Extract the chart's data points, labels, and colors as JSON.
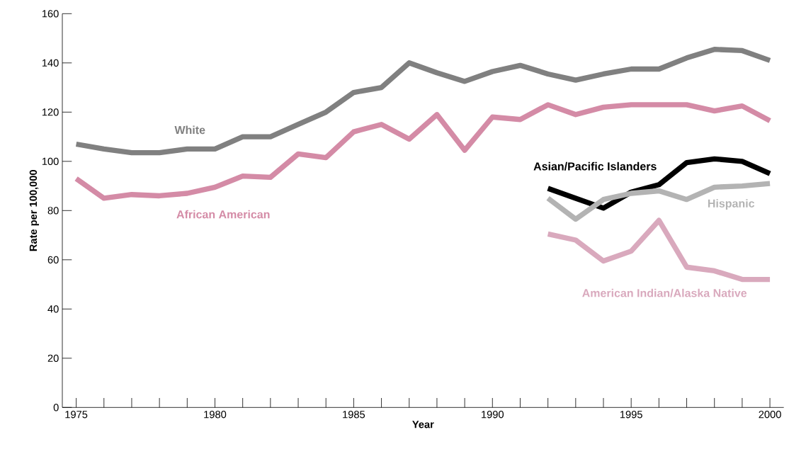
{
  "chart_data": {
    "type": "line",
    "xlabel": "Year",
    "ylabel": "Rate per 100,000",
    "xlim": [
      1974.5,
      2000.5
    ],
    "xticks": [
      1975,
      {
        "value": 1976,
        "label": null
      },
      {
        "value": 1977,
        "label": null
      },
      {
        "value": 1978,
        "label": null
      },
      {
        "value": 1979,
        "label": null
      },
      1980,
      {
        "value": 1981,
        "label": null
      },
      {
        "value": 1982,
        "label": null
      },
      {
        "value": 1983,
        "label": null
      },
      {
        "value": 1984,
        "label": null
      },
      1985,
      {
        "value": 1986,
        "label": null
      },
      {
        "value": 1987,
        "label": null
      },
      {
        "value": 1988,
        "label": null
      },
      {
        "value": 1989,
        "label": null
      },
      1990,
      {
        "value": 1991,
        "label": null
      },
      {
        "value": 1992,
        "label": null
      },
      {
        "value": 1993,
        "label": null
      },
      {
        "value": 1994,
        "label": null
      },
      1995,
      {
        "value": 1996,
        "label": null
      },
      {
        "value": 1997,
        "label": null
      },
      {
        "value": 1998,
        "label": null
      },
      {
        "value": 1999,
        "label": null
      },
      2000
    ],
    "ylim": [
      0,
      160
    ],
    "yticks": [
      0,
      20,
      40,
      60,
      80,
      100,
      120,
      140,
      160
    ],
    "grid": false,
    "legend": false,
    "series": [
      {
        "name": "White",
        "color": "#808080",
        "x": [
          1975,
          1976,
          1977,
          1978,
          1979,
          1980,
          1981,
          1982,
          1983,
          1984,
          1985,
          1986,
          1987,
          1988,
          1989,
          1990,
          1991,
          1992,
          1993,
          1994,
          1995,
          1996,
          1997,
          1998,
          1999,
          2000
        ],
        "values": [
          107,
          105,
          103.5,
          103.5,
          105,
          105,
          110,
          110,
          115,
          120,
          128,
          130,
          140,
          136,
          132.5,
          136.5,
          139,
          135.5,
          133,
          135.5,
          137.5,
          137.5,
          142,
          145.5,
          145,
          141
        ]
      },
      {
        "name": "African American",
        "color": "#d48ba6",
        "x": [
          1975,
          1976,
          1977,
          1978,
          1979,
          1980,
          1981,
          1982,
          1983,
          1984,
          1985,
          1986,
          1987,
          1988,
          1989,
          1990,
          1991,
          1992,
          1993,
          1994,
          1995,
          1996,
          1997,
          1998,
          1999,
          2000
        ],
        "values": [
          93,
          85,
          86.5,
          86,
          87,
          89.5,
          94,
          93.5,
          103,
          101.5,
          112,
          115,
          109,
          119,
          104.5,
          118,
          117,
          123,
          119,
          122,
          123,
          123,
          123,
          120.5,
          122.5,
          116.5
        ]
      },
      {
        "name": "Asian/Pacific Islanders",
        "color": "#000000",
        "x": [
          1992,
          1993,
          1994,
          1995,
          1996,
          1997,
          1998,
          1999,
          2000
        ],
        "values": [
          89,
          85,
          81,
          87.5,
          90.5,
          99.5,
          101,
          100,
          95
        ]
      },
      {
        "name": "Hispanic",
        "color": "#b3b3b3",
        "x": [
          1992,
          1993,
          1994,
          1995,
          1996,
          1997,
          1998,
          1999,
          2000
        ],
        "values": [
          85,
          76.5,
          84.5,
          87,
          88,
          84.5,
          89.5,
          90,
          91
        ]
      },
      {
        "name": "American Indian/Alaska Native",
        "color": "#d9a9bd",
        "x": [
          1992,
          1993,
          1994,
          1995,
          1996,
          1997,
          1998,
          1999,
          2000
        ],
        "values": [
          70.5,
          68,
          59.5,
          63.5,
          76,
          57,
          55.5,
          52,
          52
        ]
      }
    ]
  }
}
